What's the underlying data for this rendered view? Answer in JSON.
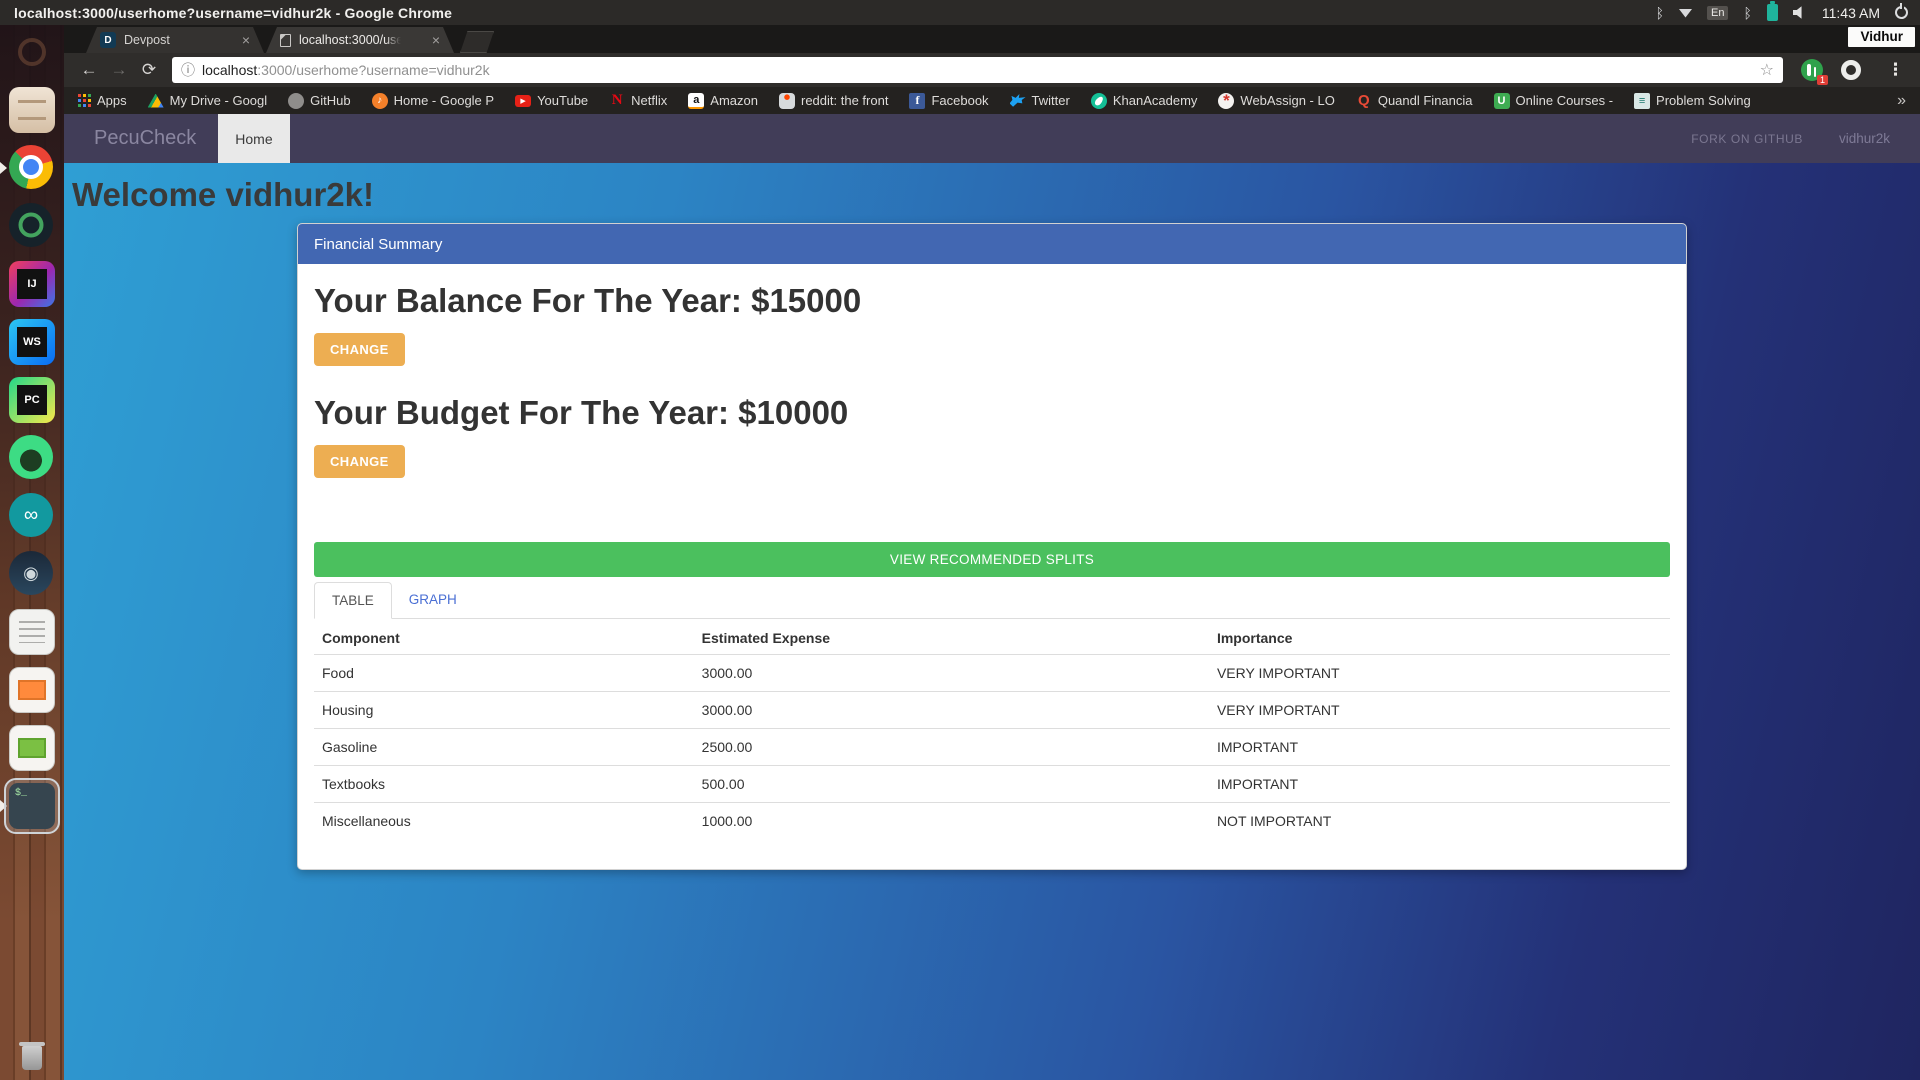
{
  "system_bar": {
    "window_title": "localhost:3000/userhome?username=vidhur2k - Google Chrome",
    "keyboard_layout": "En",
    "time": "11:43 AM"
  },
  "browser": {
    "tabs": [
      {
        "label": "Devpost",
        "favicon_letter": "D"
      },
      {
        "label": "localhost:3000/use"
      }
    ],
    "profile_badge": "Vidhur",
    "url": {
      "host": "localhost",
      "rest": ":3000/userhome?username=vidhur2k"
    },
    "extension_badge": "1",
    "bookmarks": [
      "Apps",
      "My Drive - Googl",
      "GitHub",
      "Home - Google P",
      "YouTube",
      "Netflix",
      "Amazon",
      "reddit: the front",
      "Facebook",
      "Twitter",
      "KhanAcademy",
      "WebAssign - LO",
      "Quandl Financia",
      "Online Courses -",
      "Problem Solving"
    ],
    "bookmarks_overflow": "»",
    "favicon_letters": {
      "music_note": "♪",
      "play": "▶",
      "netflix": "N",
      "amazon": "a",
      "facebook": "f",
      "webassign": "*",
      "quandl": "Q",
      "udemy": "U",
      "problem": "≡"
    }
  },
  "launcher": {
    "icons": [
      "dash-home",
      "files",
      "chrome",
      "gitkraken",
      "intellij-idea",
      "webstorm",
      "pycharm",
      "android-studio",
      "arduino",
      "steam",
      "text-editor",
      "libreoffice-impress",
      "libreoffice-calc",
      "terminal",
      "trash"
    ],
    "idea_label": "IJ",
    "webstorm_label": "WS",
    "pycharm_label": "PC",
    "arduino_label": "∞",
    "steam_label": "◉",
    "terminal_prompt": "$_"
  },
  "app": {
    "brand": "PecuCheck",
    "nav": {
      "home": "Home",
      "fork": "FORK ON GITHUB",
      "user": "vidhur2k"
    },
    "welcome": "Welcome vidhur2k!",
    "card": {
      "header": "Financial Summary",
      "balance_heading": "Your Balance For The Year: $15000",
      "budget_heading": "Your Budget For The Year: $10000",
      "change_label": "CHANGE",
      "splits_button": "VIEW RECOMMENDED SPLITS",
      "tabs": [
        {
          "label": "TABLE"
        },
        {
          "label": "GRAPH"
        }
      ],
      "table": {
        "headers": [
          "Component",
          "Estimated Expense",
          "Importance"
        ],
        "rows": [
          [
            "Food",
            "3000.00",
            "VERY IMPORTANT"
          ],
          [
            "Housing",
            "3000.00",
            "VERY IMPORTANT"
          ],
          [
            "Gasoline",
            "2500.00",
            "IMPORTANT"
          ],
          [
            "Textbooks",
            "500.00",
            "IMPORTANT"
          ],
          [
            "Miscellaneous",
            "1000.00",
            "NOT IMPORTANT"
          ]
        ]
      }
    }
  },
  "colors": {
    "card_header_blue": "#4267b2",
    "change_orange": "#edae52",
    "splits_green": "#4bc05e",
    "tab_link_blue": "#4a6fd4",
    "navbar_purple": "#413d58",
    "battery_teal": "#1fb49c",
    "page_gradient_start": "#2f9fd4",
    "page_gradient_end": "#1f2560"
  }
}
